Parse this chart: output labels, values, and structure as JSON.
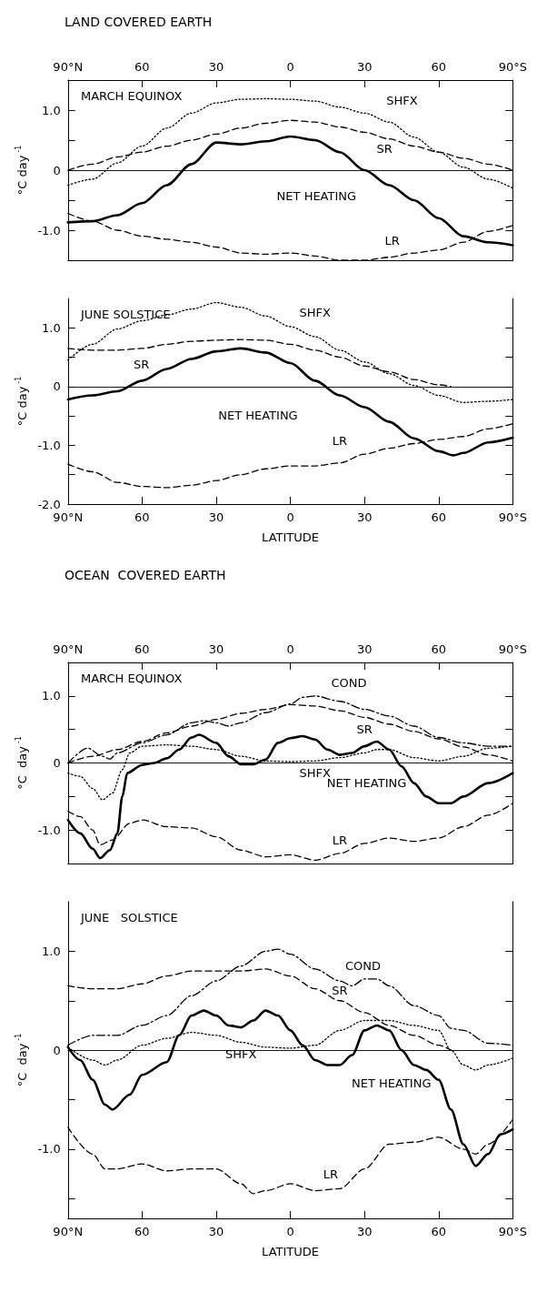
{
  "chart_data": [
    {
      "type": "line",
      "title": "LAND COVERED EARTH",
      "subtitle": "MARCH EQUINOX",
      "ylabel": "°C day$^{-1}$",
      "xlim": [
        90,
        -90
      ],
      "x2lim": [
        90,
        -90
      ],
      "x2ticks": [
        {
          "value": 90,
          "label": "90°N"
        },
        {
          "value": 60,
          "label": "60"
        },
        {
          "value": 30,
          "label": "30"
        },
        {
          "value": 0,
          "label": "0"
        },
        {
          "value": -30,
          "label": "30"
        },
        {
          "value": -60,
          "label": "60"
        },
        {
          "value": -90,
          "label": "90°S"
        }
      ],
      "ylim": [
        -1.5,
        1.5
      ],
      "yticks": [
        {
          "value": -1.5,
          "label": null
        },
        {
          "value": -1,
          "label": "-1.0"
        },
        {
          "value": -0.5,
          "label": null
        },
        {
          "value": 0,
          "label": "0"
        },
        {
          "value": 0.5,
          "label": null
        },
        {
          "value": 1,
          "label": "1.0"
        }
      ],
      "tick_labels": "y",
      "grid": false,
      "legend": false,
      "marker": "none",
      "ref_lines": [
        {
          "axis": "y",
          "value": 0
        }
      ],
      "series": [
        {
          "name": "SHFX",
          "color": "#000000",
          "line_style": "dotted",
          "x": [
            90,
            80,
            70,
            60,
            50,
            40,
            30,
            20,
            10,
            0,
            -10,
            -20,
            -30,
            -40,
            -50,
            -60,
            -70,
            -80,
            -90
          ],
          "values": [
            -0.25,
            -0.15,
            0.12,
            0.4,
            0.7,
            0.95,
            1.12,
            1.18,
            1.19,
            1.18,
            1.15,
            1.05,
            0.95,
            0.8,
            0.55,
            0.3,
            0.05,
            -0.15,
            -0.3
          ]
        },
        {
          "name": "SR",
          "color": "#000000",
          "line_style": "dashed",
          "x": [
            90,
            80,
            70,
            60,
            50,
            40,
            30,
            20,
            10,
            0,
            -10,
            -20,
            -30,
            -40,
            -50,
            -60,
            -70,
            -80,
            -90
          ],
          "values": [
            0,
            0.1,
            0.22,
            0.3,
            0.4,
            0.5,
            0.6,
            0.7,
            0.78,
            0.83,
            0.8,
            0.72,
            0.63,
            0.52,
            0.4,
            0.3,
            0.2,
            0.1,
            0
          ]
        },
        {
          "name": "NET HEATING",
          "color": "#000000",
          "line_style": "solid",
          "x": [
            90,
            80,
            70,
            60,
            50,
            40,
            30,
            20,
            10,
            0,
            -10,
            -20,
            -30,
            -40,
            -50,
            -60,
            -70,
            -80,
            -90
          ],
          "values": [
            -0.87,
            -0.85,
            -0.75,
            -0.55,
            -0.25,
            0.1,
            0.46,
            0.43,
            0.48,
            0.56,
            0.5,
            0.3,
            0,
            -0.25,
            -0.5,
            -0.8,
            -1.1,
            -1.2,
            -1.25
          ]
        },
        {
          "name": "LR",
          "color": "#000000",
          "line_style": "dashed",
          "x": [
            90,
            80,
            70,
            60,
            50,
            40,
            30,
            20,
            10,
            0,
            -10,
            -20,
            -30,
            -40,
            -50,
            -60,
            -70,
            -80,
            -90
          ],
          "values": [
            -0.72,
            -0.85,
            -1,
            -1.1,
            -1.15,
            -1.2,
            -1.28,
            -1.38,
            -1.4,
            -1.38,
            -1.43,
            -1.5,
            -1.5,
            -1.45,
            -1.38,
            -1.33,
            -1.2,
            -1.02,
            -0.92
          ]
        }
      ]
    },
    {
      "type": "line",
      "subtitle": "JUNE SOLSTICE",
      "xlabel": "LATITUDE",
      "ylabel": "°C day$^{-1}$",
      "xlim": [
        90,
        -90
      ],
      "xticks": [
        {
          "value": 90,
          "label": "90°N"
        },
        {
          "value": 60,
          "label": "60"
        },
        {
          "value": 30,
          "label": "30"
        },
        {
          "value": 0,
          "label": "0"
        },
        {
          "value": -30,
          "label": "30"
        },
        {
          "value": -60,
          "label": "60"
        },
        {
          "value": -90,
          "label": "90°S"
        }
      ],
      "ylim": [
        -2,
        1.5
      ],
      "yticks": [
        {
          "value": -2,
          "label": "-2.0"
        },
        {
          "value": -1.5,
          "label": null
        },
        {
          "value": -1,
          "label": "-1.0"
        },
        {
          "value": -0.5,
          "label": null
        },
        {
          "value": 0,
          "label": "0"
        },
        {
          "value": 0.5,
          "label": null
        },
        {
          "value": 1,
          "label": "1.0"
        }
      ],
      "grid": false,
      "legend": false,
      "marker": "none",
      "ref_lines": [
        {
          "axis": "y",
          "value": 0
        }
      ],
      "series": [
        {
          "name": "SHFX",
          "color": "#000000",
          "line_style": "dotted",
          "x": [
            90,
            80,
            70,
            60,
            50,
            40,
            30,
            20,
            10,
            0,
            -10,
            -20,
            -30,
            -40,
            -50,
            -60,
            -70,
            -80,
            -90
          ],
          "values": [
            0.45,
            0.72,
            0.98,
            1.12,
            1.22,
            1.32,
            1.43,
            1.35,
            1.2,
            1.02,
            0.85,
            0.62,
            0.42,
            0.22,
            0.02,
            -0.15,
            -0.27,
            -0.25,
            -0.22
          ]
        },
        {
          "name": "SR",
          "color": "#000000",
          "line_style": "dashed",
          "x": [
            90,
            80,
            70,
            60,
            50,
            40,
            30,
            20,
            10,
            0,
            -10,
            -20,
            -30,
            -40,
            -50,
            -60,
            -65
          ],
          "values": [
            0.65,
            0.62,
            0.62,
            0.65,
            0.72,
            0.77,
            0.79,
            0.8,
            0.79,
            0.72,
            0.62,
            0.5,
            0.35,
            0.25,
            0.12,
            0.03,
            0
          ]
        },
        {
          "name": "NET HEATING",
          "color": "#000000",
          "line_style": "solid",
          "x": [
            90,
            80,
            70,
            60,
            50,
            40,
            30,
            20,
            10,
            0,
            -10,
            -20,
            -30,
            -40,
            -50,
            -60,
            -66,
            -70,
            -80,
            -90
          ],
          "values": [
            -0.22,
            -0.15,
            -0.08,
            0.1,
            0.3,
            0.47,
            0.6,
            0.65,
            0.58,
            0.4,
            0.1,
            -0.15,
            -0.35,
            -0.6,
            -0.88,
            -1.1,
            -1.17,
            -1.13,
            -0.95,
            -0.87
          ]
        },
        {
          "name": "LR",
          "color": "#000000",
          "line_style": "dashed",
          "x": [
            90,
            80,
            70,
            60,
            50,
            40,
            30,
            20,
            10,
            0,
            -10,
            -20,
            -30,
            -40,
            -50,
            -60,
            -70,
            -80,
            -90
          ],
          "values": [
            -1.32,
            -1.45,
            -1.63,
            -1.7,
            -1.72,
            -1.68,
            -1.6,
            -1.5,
            -1.4,
            -1.35,
            -1.35,
            -1.3,
            -1.15,
            -1.05,
            -0.97,
            -0.9,
            -0.85,
            -0.72,
            -0.63
          ]
        }
      ]
    },
    {
      "type": "line",
      "title": "OCEAN  COVERED EARTH",
      "subtitle": "MARCH EQUINOX",
      "ylabel": "°C  day$^{-1}$",
      "xlim": [
        90,
        -90
      ],
      "x2lim": [
        90,
        -90
      ],
      "x2ticks": [
        {
          "value": 90,
          "label": "90°N"
        },
        {
          "value": 60,
          "label": "60"
        },
        {
          "value": 30,
          "label": "30"
        },
        {
          "value": 0,
          "label": "0"
        },
        {
          "value": -30,
          "label": "30"
        },
        {
          "value": -60,
          "label": "60"
        },
        {
          "value": -90,
          "label": "90°S"
        }
      ],
      "ylim": [
        -1.5,
        1.5
      ],
      "yticks": [
        {
          "value": -1.5,
          "label": null
        },
        {
          "value": -1,
          "label": "-1.0"
        },
        {
          "value": -0.5,
          "label": null
        },
        {
          "value": 0,
          "label": "0"
        },
        {
          "value": 0.5,
          "label": null
        },
        {
          "value": 1,
          "label": "1.0"
        }
      ],
      "tick_labels": "y",
      "grid": false,
      "legend": false,
      "marker": "none",
      "ref_lines": [
        {
          "axis": "y",
          "value": 0
        }
      ],
      "series": [
        {
          "name": "COND",
          "color": "#000000",
          "line_style": "dashdot",
          "x": [
            90,
            82,
            76,
            73,
            70,
            60,
            50,
            40,
            35,
            30,
            25,
            20,
            10,
            0,
            -5,
            -10,
            -20,
            -30,
            -40,
            -50,
            -60,
            -70,
            -80,
            -90
          ],
          "values": [
            0,
            0.22,
            0.1,
            0.06,
            0.15,
            0.3,
            0.42,
            0.6,
            0.63,
            0.6,
            0.55,
            0.6,
            0.75,
            0.88,
            0.98,
            1,
            0.92,
            0.8,
            0.7,
            0.55,
            0.38,
            0.3,
            0.25,
            0.25
          ]
        },
        {
          "name": "SR",
          "color": "#000000",
          "line_style": "dashed",
          "x": [
            90,
            80,
            70,
            60,
            50,
            40,
            30,
            20,
            10,
            0,
            -10,
            -20,
            -30,
            -40,
            -50,
            -60,
            -70,
            -80,
            -90
          ],
          "values": [
            0,
            0.1,
            0.2,
            0.32,
            0.45,
            0.55,
            0.65,
            0.74,
            0.8,
            0.87,
            0.85,
            0.78,
            0.68,
            0.58,
            0.47,
            0.36,
            0.24,
            0.12,
            0.03
          ]
        },
        {
          "name": "SHFX",
          "color": "#000000",
          "line_style": "dotted",
          "x": [
            90,
            85,
            80,
            76,
            72,
            68,
            65,
            60,
            50,
            40,
            30,
            20,
            10,
            0,
            -10,
            -20,
            -30,
            -35,
            -40,
            -50,
            -60,
            -70,
            -80,
            -90
          ],
          "values": [
            -0.15,
            -0.2,
            -0.38,
            -0.55,
            -0.45,
            -0.1,
            0.15,
            0.25,
            0.27,
            0.25,
            0.2,
            0.1,
            0.03,
            0.02,
            0.03,
            0.08,
            0.15,
            0.2,
            0.2,
            0.08,
            0.03,
            0.1,
            0.22,
            0.25
          ]
        },
        {
          "name": "NET HEATING",
          "color": "#000000",
          "line_style": "solid",
          "x": [
            90,
            85,
            80,
            77,
            73,
            70,
            68,
            66,
            60,
            55,
            50,
            45,
            40,
            37,
            30,
            25,
            20,
            15,
            10,
            5,
            0,
            -5,
            -10,
            -15,
            -20,
            -25,
            -30,
            -35,
            -40,
            -45,
            -50,
            -55,
            -60,
            -65,
            -70,
            -80,
            -90
          ],
          "values": [
            -0.85,
            -1.05,
            -1.28,
            -1.42,
            -1.3,
            -1.05,
            -0.5,
            -0.15,
            -0.03,
            0,
            0.07,
            0.2,
            0.38,
            0.42,
            0.3,
            0.1,
            -0.02,
            -0.02,
            0.05,
            0.3,
            0.37,
            0.4,
            0.35,
            0.2,
            0.12,
            0.15,
            0.25,
            0.32,
            0.2,
            -0.05,
            -0.3,
            -0.5,
            -0.6,
            -0.6,
            -0.5,
            -0.3,
            -0.15
          ]
        },
        {
          "name": "LR",
          "color": "#000000",
          "line_style": "dashed",
          "x": [
            90,
            85,
            80,
            77,
            72,
            65,
            60,
            50,
            40,
            30,
            20,
            10,
            0,
            -10,
            -20,
            -30,
            -40,
            -50,
            -60,
            -70,
            -80,
            -90
          ],
          "values": [
            -0.72,
            -0.8,
            -1,
            -1.22,
            -1.15,
            -0.9,
            -0.85,
            -0.95,
            -0.97,
            -1.1,
            -1.3,
            -1.4,
            -1.37,
            -1.45,
            -1.35,
            -1.2,
            -1.12,
            -1.17,
            -1.12,
            -0.95,
            -0.78,
            -0.6
          ]
        }
      ]
    },
    {
      "type": "line",
      "subtitle": "JUNE   SOLSTICE",
      "xlabel": "LATITUDE",
      "ylabel": "°C  day$^{-1}$",
      "xlim": [
        90,
        -90
      ],
      "xticks": [
        {
          "value": 90,
          "label": "90°N"
        },
        {
          "value": 60,
          "label": "60"
        },
        {
          "value": 30,
          "label": "30"
        },
        {
          "value": 0,
          "label": "0"
        },
        {
          "value": -30,
          "label": "30"
        },
        {
          "value": -60,
          "label": "60"
        },
        {
          "value": -90,
          "label": "90°S"
        }
      ],
      "ylim": [
        -1.7,
        1.5
      ],
      "yticks": [
        {
          "value": -1.5,
          "label": null
        },
        {
          "value": -1,
          "label": "-1.0"
        },
        {
          "value": -0.5,
          "label": null
        },
        {
          "value": 0,
          "label": "0"
        },
        {
          "value": 0.5,
          "label": null
        },
        {
          "value": 1,
          "label": "1.0"
        }
      ],
      "grid": false,
      "legend": false,
      "marker": "none",
      "ref_lines": [
        {
          "axis": "y",
          "value": 0
        }
      ],
      "series": [
        {
          "name": "COND",
          "color": "#000000",
          "line_style": "dashdot",
          "x": [
            90,
            80,
            70,
            60,
            50,
            40,
            30,
            20,
            10,
            5,
            0,
            -10,
            -20,
            -25,
            -30,
            -35,
            -40,
            -50,
            -60,
            -65,
            -70,
            -80,
            -90
          ],
          "values": [
            0.05,
            0.15,
            0.15,
            0.25,
            0.35,
            0.55,
            0.7,
            0.85,
            1,
            1.02,
            0.97,
            0.82,
            0.7,
            0.65,
            0.72,
            0.72,
            0.65,
            0.45,
            0.35,
            0.22,
            0.2,
            0.07,
            0.05
          ]
        },
        {
          "name": "SR",
          "color": "#000000",
          "line_style": "dashed",
          "x": [
            90,
            80,
            70,
            60,
            50,
            40,
            30,
            20,
            10,
            0,
            -10,
            -20,
            -30,
            -40,
            -50,
            -60,
            -65
          ],
          "values": [
            0.65,
            0.62,
            0.62,
            0.67,
            0.75,
            0.8,
            0.8,
            0.8,
            0.82,
            0.75,
            0.62,
            0.5,
            0.38,
            0.25,
            0.15,
            0.05,
            0
          ]
        },
        {
          "name": "SHFX",
          "color": "#000000",
          "line_style": "dotted",
          "x": [
            90,
            80,
            75,
            70,
            60,
            50,
            40,
            30,
            20,
            10,
            0,
            -10,
            -20,
            -30,
            -40,
            -50,
            -60,
            -65,
            -70,
            -75,
            -80,
            -90
          ],
          "values": [
            0.03,
            -0.1,
            -0.15,
            -0.1,
            0.05,
            0.12,
            0.18,
            0.15,
            0.08,
            0.03,
            0.02,
            0.05,
            0.2,
            0.3,
            0.3,
            0.25,
            0.2,
            0,
            -0.15,
            -0.2,
            -0.15,
            -0.08
          ]
        },
        {
          "name": "NET HEATING",
          "color": "#000000",
          "line_style": "solid",
          "x": [
            90,
            85,
            80,
            75,
            72,
            65,
            60,
            50,
            45,
            40,
            35,
            30,
            25,
            20,
            15,
            10,
            5,
            0,
            -5,
            -10,
            -15,
            -20,
            -25,
            -30,
            -35,
            -40,
            -45,
            -50,
            -55,
            -60,
            -65,
            -70,
            -75,
            -80,
            -85,
            -90
          ],
          "values": [
            0.03,
            -0.1,
            -0.3,
            -0.55,
            -0.6,
            -0.45,
            -0.25,
            -0.12,
            0.15,
            0.35,
            0.4,
            0.35,
            0.25,
            0.23,
            0.3,
            0.4,
            0.35,
            0.2,
            0.05,
            -0.1,
            -0.15,
            -0.15,
            -0.05,
            0.2,
            0.25,
            0.2,
            0,
            -0.15,
            -0.2,
            -0.3,
            -0.6,
            -0.95,
            -1.17,
            -1.05,
            -0.85,
            -0.8
          ]
        },
        {
          "name": "LR",
          "color": "#000000",
          "line_style": "dashed",
          "x": [
            90,
            80,
            75,
            70,
            60,
            50,
            40,
            30,
            20,
            15,
            10,
            0,
            -10,
            -20,
            -30,
            -40,
            -50,
            -60,
            -70,
            -75,
            -80,
            -90
          ],
          "values": [
            -0.78,
            -1.05,
            -1.2,
            -1.2,
            -1.15,
            -1.22,
            -1.2,
            -1.2,
            -1.35,
            -1.45,
            -1.42,
            -1.35,
            -1.42,
            -1.4,
            -1.2,
            -0.95,
            -0.93,
            -0.88,
            -1,
            -1.05,
            -0.95,
            -0.7
          ]
        }
      ]
    }
  ]
}
